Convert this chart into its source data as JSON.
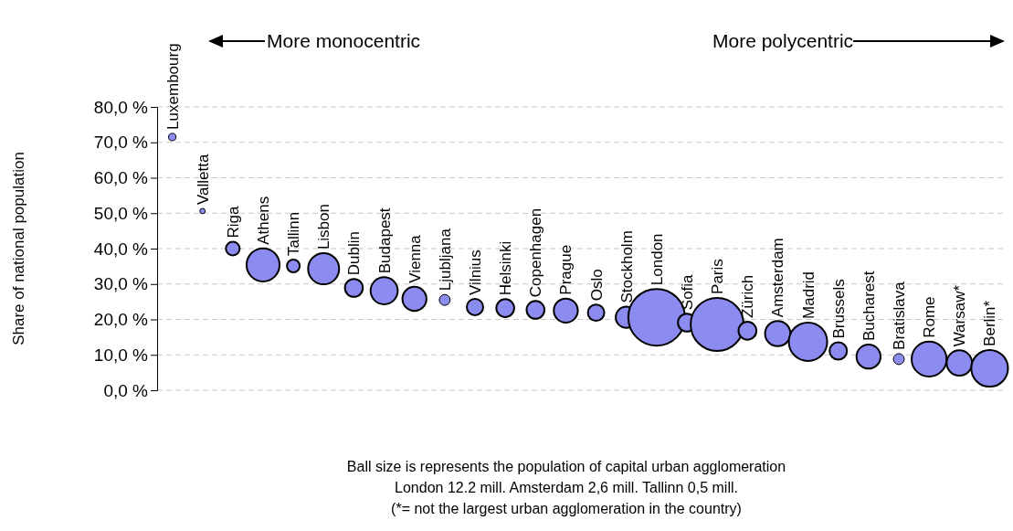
{
  "chart_data": {
    "type": "bubble",
    "ylabel": "Share of national population",
    "categories": [
      "Luxembourg",
      "Valletta",
      "Riga",
      "Athens",
      "Tallinn",
      "Lisbon",
      "Dublin",
      "Budapest",
      "Vienna",
      "Ljubljana",
      "Vilnius",
      "Helsinki",
      "Copenhagen",
      "Prague",
      "Oslo",
      "Stockholm",
      "London",
      "Sofia",
      "Paris",
      "Zürich",
      "Amsterdam",
      "Madrid",
      "Brussels",
      "Bucharest",
      "Bratislava",
      "Rome",
      "Warsaw*",
      "Berlin*"
    ],
    "values": [
      71.5,
      50.6,
      40.0,
      35.4,
      35.1,
      34.3,
      28.9,
      28.1,
      25.8,
      25.5,
      23.5,
      23.2,
      22.7,
      22.5,
      21.9,
      20.6,
      20.6,
      19.1,
      18.6,
      16.8,
      16.0,
      13.7,
      11.1,
      9.5,
      8.8,
      8.8,
      7.7,
      6.2
    ],
    "sizes": [
      0.017,
      0.009,
      0.059,
      0.34,
      0.051,
      0.3,
      0.1,
      0.23,
      0.18,
      0.037,
      0.084,
      0.1,
      0.1,
      0.18,
      0.084,
      0.14,
      1,
      0.1,
      0.875,
      0.1,
      0.2,
      0.46,
      0.094,
      0.18,
      0.037,
      0.38,
      0.2,
      0.42
    ],
    "color": "#8c8cf0",
    "ylim": [
      0,
      80
    ],
    "yticks": [
      {
        "value": 0,
        "label": "0,0 %"
      },
      {
        "value": 10,
        "label": "10,0 %"
      },
      {
        "value": 20,
        "label": "20,0 %"
      },
      {
        "value": 30,
        "label": "30,0 %"
      },
      {
        "value": 40,
        "label": "40,0 %"
      },
      {
        "value": 50,
        "label": "50,0 %"
      },
      {
        "value": 60,
        "label": "60,0 %"
      },
      {
        "value": 70,
        "label": "70,0 %"
      },
      {
        "value": 80,
        "label": "80,0 %"
      }
    ],
    "grid": "y",
    "tick_labels": "y",
    "annotations": [
      "More monocentric",
      "More polycentric",
      "Ball size is represents the population of capital urban agglomeration",
      "London 12.2 mill. Amsterdam 2,6 mill. Tallinn 0,5 mill.",
      "(*= not the largest urban agglomeration in the country)"
    ]
  }
}
